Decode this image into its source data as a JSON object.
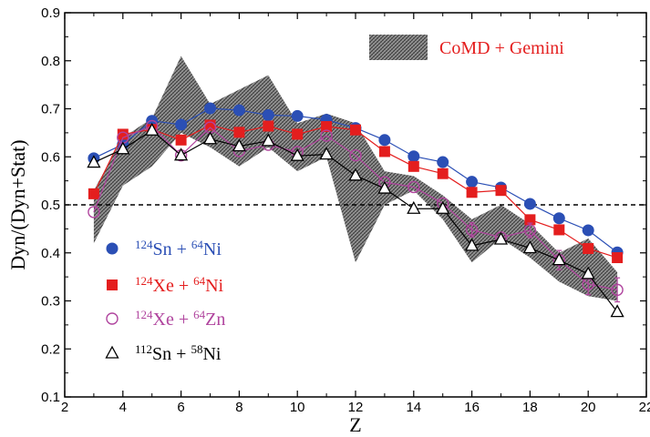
{
  "chart_data": {
    "type": "line",
    "xlabel": "Z",
    "ylabel": "Dyn/(Dyn+Stat)",
    "xlim": [
      2,
      22
    ],
    "ylim": [
      0.1,
      0.9
    ],
    "xticks": [
      2,
      4,
      6,
      8,
      10,
      12,
      14,
      16,
      18,
      20,
      22
    ],
    "yticks": [
      0.1,
      0.2,
      0.3,
      0.4,
      0.5,
      0.6,
      0.7,
      0.8,
      0.9
    ],
    "x_tick_labels": [
      "2",
      "4",
      "6",
      "8",
      "10",
      "12",
      "14",
      "16",
      "18",
      "20",
      "22"
    ],
    "y_tick_labels": [
      "0.1",
      "0.2",
      "0.3",
      "0.4",
      "0.5",
      "0.6",
      "0.7",
      "0.8",
      "0.9"
    ],
    "reference_line": {
      "y": 0.5,
      "style": "dashed"
    },
    "grid": false,
    "band": {
      "name": "CoMD + Gemini",
      "x": [
        3,
        4,
        5,
        6,
        7,
        8,
        9,
        10,
        11,
        12,
        13,
        14,
        15,
        16,
        17,
        18,
        19,
        20,
        21
      ],
      "upper": [
        0.53,
        0.64,
        0.68,
        0.81,
        0.71,
        0.74,
        0.77,
        0.67,
        0.69,
        0.67,
        0.57,
        0.56,
        0.52,
        0.47,
        0.5,
        0.46,
        0.4,
        0.43,
        0.36
      ],
      "lower": [
        0.42,
        0.54,
        0.58,
        0.65,
        0.62,
        0.58,
        0.62,
        0.57,
        0.6,
        0.38,
        0.5,
        0.53,
        0.47,
        0.38,
        0.43,
        0.39,
        0.34,
        0.31,
        0.3
      ]
    },
    "legend_placement": "left",
    "band_legend_placement": "top-right",
    "series": [
      {
        "name": "Sn + Ni",
        "label_parts": [
          {
            "sup": "124"
          },
          {
            "text": "Sn + "
          },
          {
            "sup": "64"
          },
          {
            "text": "Ni"
          }
        ],
        "color": "#2b4fb5",
        "marker": "circle-filled",
        "x": [
          3,
          4,
          5,
          6,
          7,
          8,
          9,
          10,
          11,
          12,
          13,
          14,
          15,
          16,
          17,
          18,
          19,
          20,
          21
        ],
        "values": [
          0.597,
          0.626,
          0.675,
          0.667,
          0.701,
          0.697,
          0.687,
          0.685,
          0.677,
          0.66,
          0.635,
          0.601,
          0.589,
          0.548,
          0.536,
          0.502,
          0.472,
          0.447,
          0.401
        ]
      },
      {
        "name": "Xe + Ni",
        "label_parts": [
          {
            "sup": "124"
          },
          {
            "text": "Xe + "
          },
          {
            "sup": "64"
          },
          {
            "text": "Ni"
          }
        ],
        "color": "#e41e1e",
        "marker": "square-filled",
        "x": [
          3,
          4,
          5,
          6,
          7,
          8,
          9,
          10,
          11,
          12,
          13,
          14,
          15,
          16,
          17,
          18,
          19,
          20,
          21
        ],
        "values": [
          0.523,
          0.647,
          0.657,
          0.635,
          0.666,
          0.651,
          0.664,
          0.647,
          0.663,
          0.656,
          0.611,
          0.58,
          0.565,
          0.526,
          0.53,
          0.469,
          0.448,
          0.409,
          0.39
        ]
      },
      {
        "name": "Xe + Zn",
        "label_parts": [
          {
            "sup": "124"
          },
          {
            "text": "Xe + "
          },
          {
            "sup": "64"
          },
          {
            "text": "Zn"
          }
        ],
        "color": "#b0449e",
        "marker": "circle-open",
        "x": [
          3,
          4,
          5,
          6,
          7,
          8,
          9,
          10,
          11,
          12,
          13,
          14,
          15,
          16,
          17,
          18,
          19,
          20,
          21
        ],
        "values": [
          0.485,
          0.64,
          0.664,
          0.603,
          0.661,
          0.612,
          0.625,
          0.61,
          0.644,
          0.603,
          0.547,
          0.537,
          0.503,
          0.448,
          0.432,
          0.447,
          0.385,
          0.335,
          0.323
        ],
        "error": [
          0,
          0,
          0,
          0,
          0,
          0,
          0,
          0,
          0,
          0,
          0,
          0,
          0,
          0.015,
          0,
          0.015,
          0.02,
          0.022,
          0.025
        ]
      },
      {
        "name": "Sn + Ni",
        "label_parts": [
          {
            "sup": "112"
          },
          {
            "text": "Sn + "
          },
          {
            "sup": "58"
          },
          {
            "text": "Ni"
          }
        ],
        "color": "#000000",
        "marker": "triangle-open",
        "x": [
          3,
          4,
          5,
          6,
          7,
          8,
          9,
          10,
          11,
          12,
          13,
          14,
          15,
          16,
          17,
          18,
          19,
          20,
          21
        ],
        "values": [
          0.588,
          0.616,
          0.655,
          0.603,
          0.637,
          0.622,
          0.633,
          0.602,
          0.605,
          0.561,
          0.534,
          0.492,
          0.492,
          0.415,
          0.428,
          0.41,
          0.385,
          0.356,
          0.277
        ]
      }
    ]
  }
}
